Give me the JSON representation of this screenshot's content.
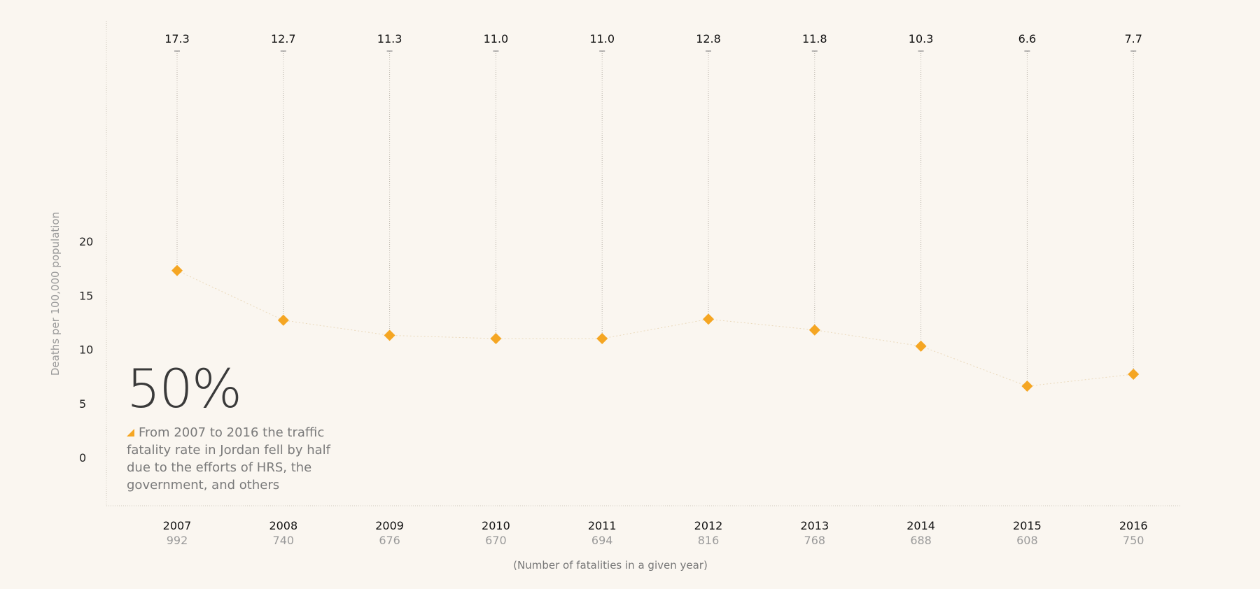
{
  "chart_data": {
    "type": "line",
    "x": [
      "2007",
      "2008",
      "2009",
      "2010",
      "2011",
      "2012",
      "2013",
      "2014",
      "2015",
      "2016"
    ],
    "series": [
      {
        "values": [
          17.3,
          12.7,
          11.3,
          11.0,
          11.0,
          12.8,
          11.8,
          10.3,
          6.6,
          7.7
        ]
      }
    ],
    "data_labels": [
      "17.3",
      "12.7",
      "11.3",
      "11.0",
      "11.0",
      "12.8",
      "11.8",
      "10.3",
      "6.6",
      "7.7"
    ],
    "fatalities": [
      "992",
      "740",
      "676",
      "670",
      "694",
      "816",
      "768",
      "688",
      "608",
      "750"
    ],
    "yticks": [
      "0",
      "5",
      "10",
      "15",
      "20"
    ],
    "ylim": [
      0,
      20
    ],
    "ylabel": "Deaths per 100,000 population",
    "xlabel": "(Number of fatalities in a given year)",
    "marker_color": "#f5a623",
    "grid": false
  },
  "callout": {
    "big": "50%",
    "text": "From 2007 to 2016 the traffic fatality rate in Jordan fell by half due to the efforts of HRS, the government, and others"
  }
}
